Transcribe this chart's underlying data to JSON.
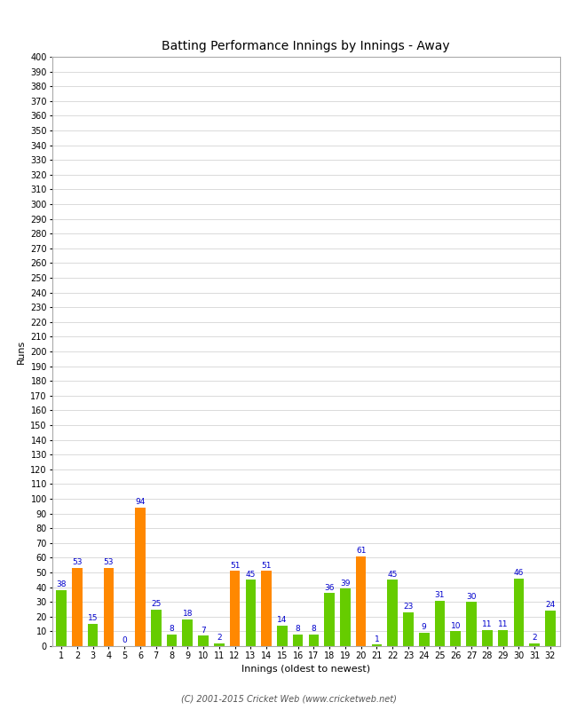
{
  "title": "Batting Performance Innings by Innings - Away",
  "xlabel": "Innings (oldest to newest)",
  "ylabel": "Runs",
  "innings": [
    1,
    2,
    3,
    4,
    5,
    6,
    7,
    8,
    9,
    10,
    11,
    12,
    13,
    14,
    15,
    16,
    17,
    18,
    19,
    20,
    21,
    22,
    23,
    24,
    25,
    26,
    27,
    28,
    29,
    30,
    31,
    32
  ],
  "values": [
    38,
    53,
    15,
    53,
    0,
    94,
    25,
    8,
    18,
    7,
    2,
    51,
    45,
    51,
    14,
    8,
    8,
    36,
    39,
    61,
    1,
    45,
    23,
    9,
    31,
    10,
    30,
    11,
    11,
    46,
    2,
    24
  ],
  "colors": [
    "#66cc00",
    "#ff8800",
    "#66cc00",
    "#ff8800",
    "#66cc00",
    "#ff8800",
    "#66cc00",
    "#66cc00",
    "#66cc00",
    "#66cc00",
    "#66cc00",
    "#ff8800",
    "#66cc00",
    "#ff8800",
    "#66cc00",
    "#66cc00",
    "#66cc00",
    "#66cc00",
    "#66cc00",
    "#ff8800",
    "#66cc00",
    "#66cc00",
    "#66cc00",
    "#66cc00",
    "#66cc00",
    "#66cc00",
    "#66cc00",
    "#66cc00",
    "#66cc00",
    "#66cc00",
    "#66cc00",
    "#66cc00"
  ],
  "label_color": "#0000cc",
  "ylim": [
    0,
    400
  ],
  "yticks": [
    0,
    10,
    20,
    30,
    40,
    50,
    60,
    70,
    80,
    90,
    100,
    110,
    120,
    130,
    140,
    150,
    160,
    170,
    180,
    190,
    200,
    210,
    220,
    230,
    240,
    250,
    260,
    270,
    280,
    290,
    300,
    310,
    320,
    330,
    340,
    350,
    360,
    370,
    380,
    390,
    400
  ],
  "bg_color": "#ffffff",
  "grid_color": "#cccccc",
  "title_fontsize": 10,
  "axis_fontsize": 8,
  "tick_fontsize": 7,
  "label_fontsize": 6.5,
  "footer": "(C) 2001-2015 Cricket Web (www.cricketweb.net)"
}
